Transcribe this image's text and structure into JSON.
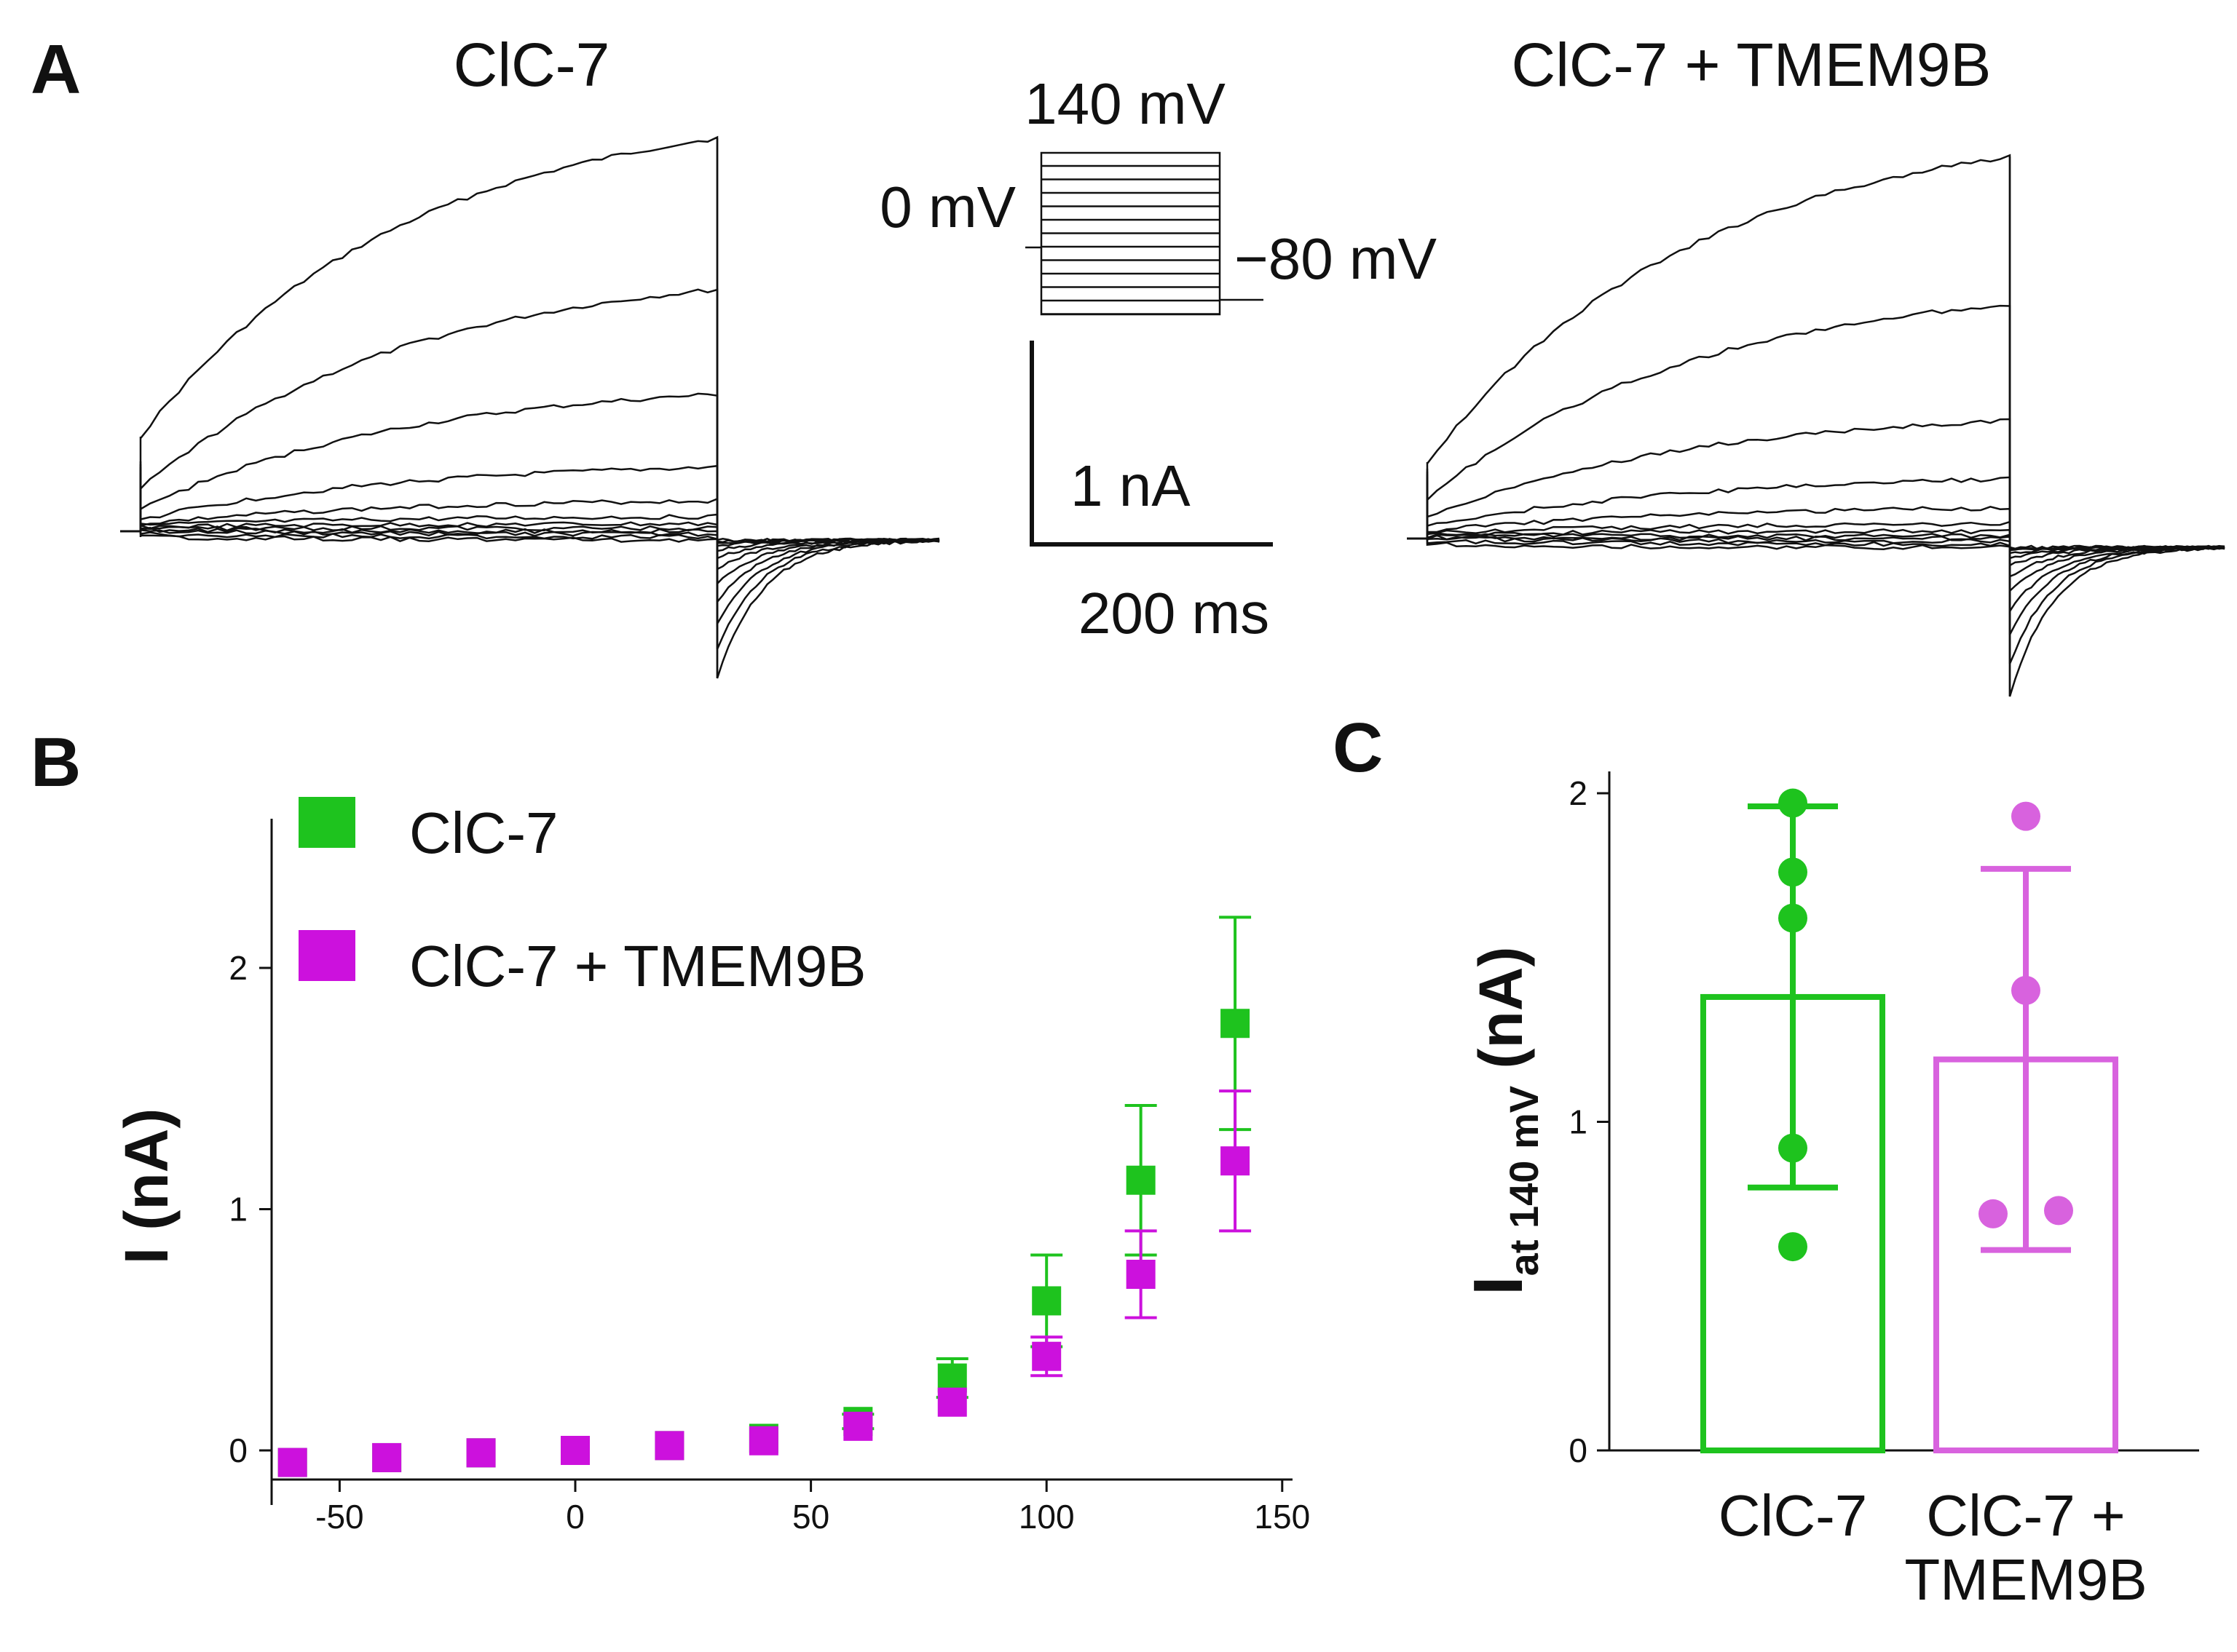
{
  "panels": {
    "a": "A",
    "b": "B",
    "c": "C"
  },
  "panel_a": {
    "title_left": "ClC-7",
    "title_right": "ClC-7 + TMEM9B",
    "protocol_top": "140 mV",
    "protocol_hold": "0 mV",
    "protocol_bottom": "−80 mV",
    "scale_current": "1 nA",
    "scale_time": "200 ms"
  },
  "colors": {
    "clc7": "#1ec31e",
    "tmem": "#cc11dd",
    "tmem_c": "#d862de",
    "trace": "#111111"
  },
  "chart_data": [
    {
      "type": "scatter",
      "panel": "B",
      "xlabel": "",
      "ylabel": "I (nA)",
      "xlim": [
        -65,
        152
      ],
      "ylim": [
        -0.12,
        2.6
      ],
      "xticks": [
        -50,
        0,
        50,
        100,
        150
      ],
      "yticks": [
        0,
        1,
        2
      ],
      "grid": false,
      "legend_position": "top-left",
      "series": [
        {
          "name": "ClC-7",
          "color": "#1ec31e",
          "x": [
            -60,
            -40,
            -20,
            0,
            20,
            40,
            60,
            80,
            100,
            120,
            140
          ],
          "y": [
            -0.05,
            -0.03,
            -0.01,
            0.0,
            0.02,
            0.05,
            0.12,
            0.3,
            0.62,
            1.12,
            1.77
          ],
          "err": [
            0.0,
            0.0,
            0.0,
            0.0,
            0.0,
            0.0,
            0.03,
            0.08,
            0.19,
            0.31,
            0.44
          ]
        },
        {
          "name": "ClC-7 + TMEM9B",
          "color": "#cc11dd",
          "x": [
            -60,
            -40,
            -20,
            0,
            20,
            40,
            60,
            80,
            100,
            120,
            140
          ],
          "y": [
            -0.05,
            -0.03,
            -0.01,
            0.0,
            0.02,
            0.04,
            0.1,
            0.2,
            0.39,
            0.73,
            1.2
          ],
          "err": [
            0.0,
            0.0,
            0.0,
            0.0,
            0.0,
            0.0,
            0.0,
            0.0,
            0.08,
            0.18,
            0.29
          ]
        }
      ]
    },
    {
      "type": "bar",
      "panel": "C",
      "ylabel_main": "I",
      "ylabel_sub": "at  140 mV",
      "ylabel_unit": " (nA)",
      "ylim": [
        0,
        2.05
      ],
      "yticks": [
        0,
        1,
        2
      ],
      "grid": false,
      "categories": [
        "ClC-7",
        "ClC-7 + TMEM9B"
      ],
      "category_lines": [
        [
          "ClC-7"
        ],
        [
          "ClC-7 +",
          "TMEM9B"
        ]
      ],
      "means": [
        1.38,
        1.19
      ],
      "sd": [
        0.58,
        0.58
      ],
      "points": [
        [
          1.97,
          1.76,
          1.62,
          0.92,
          0.62
        ],
        [
          1.93,
          1.4,
          0.72,
          0.73
        ]
      ],
      "colors": [
        "#1ec31e",
        "#d862de"
      ]
    }
  ]
}
